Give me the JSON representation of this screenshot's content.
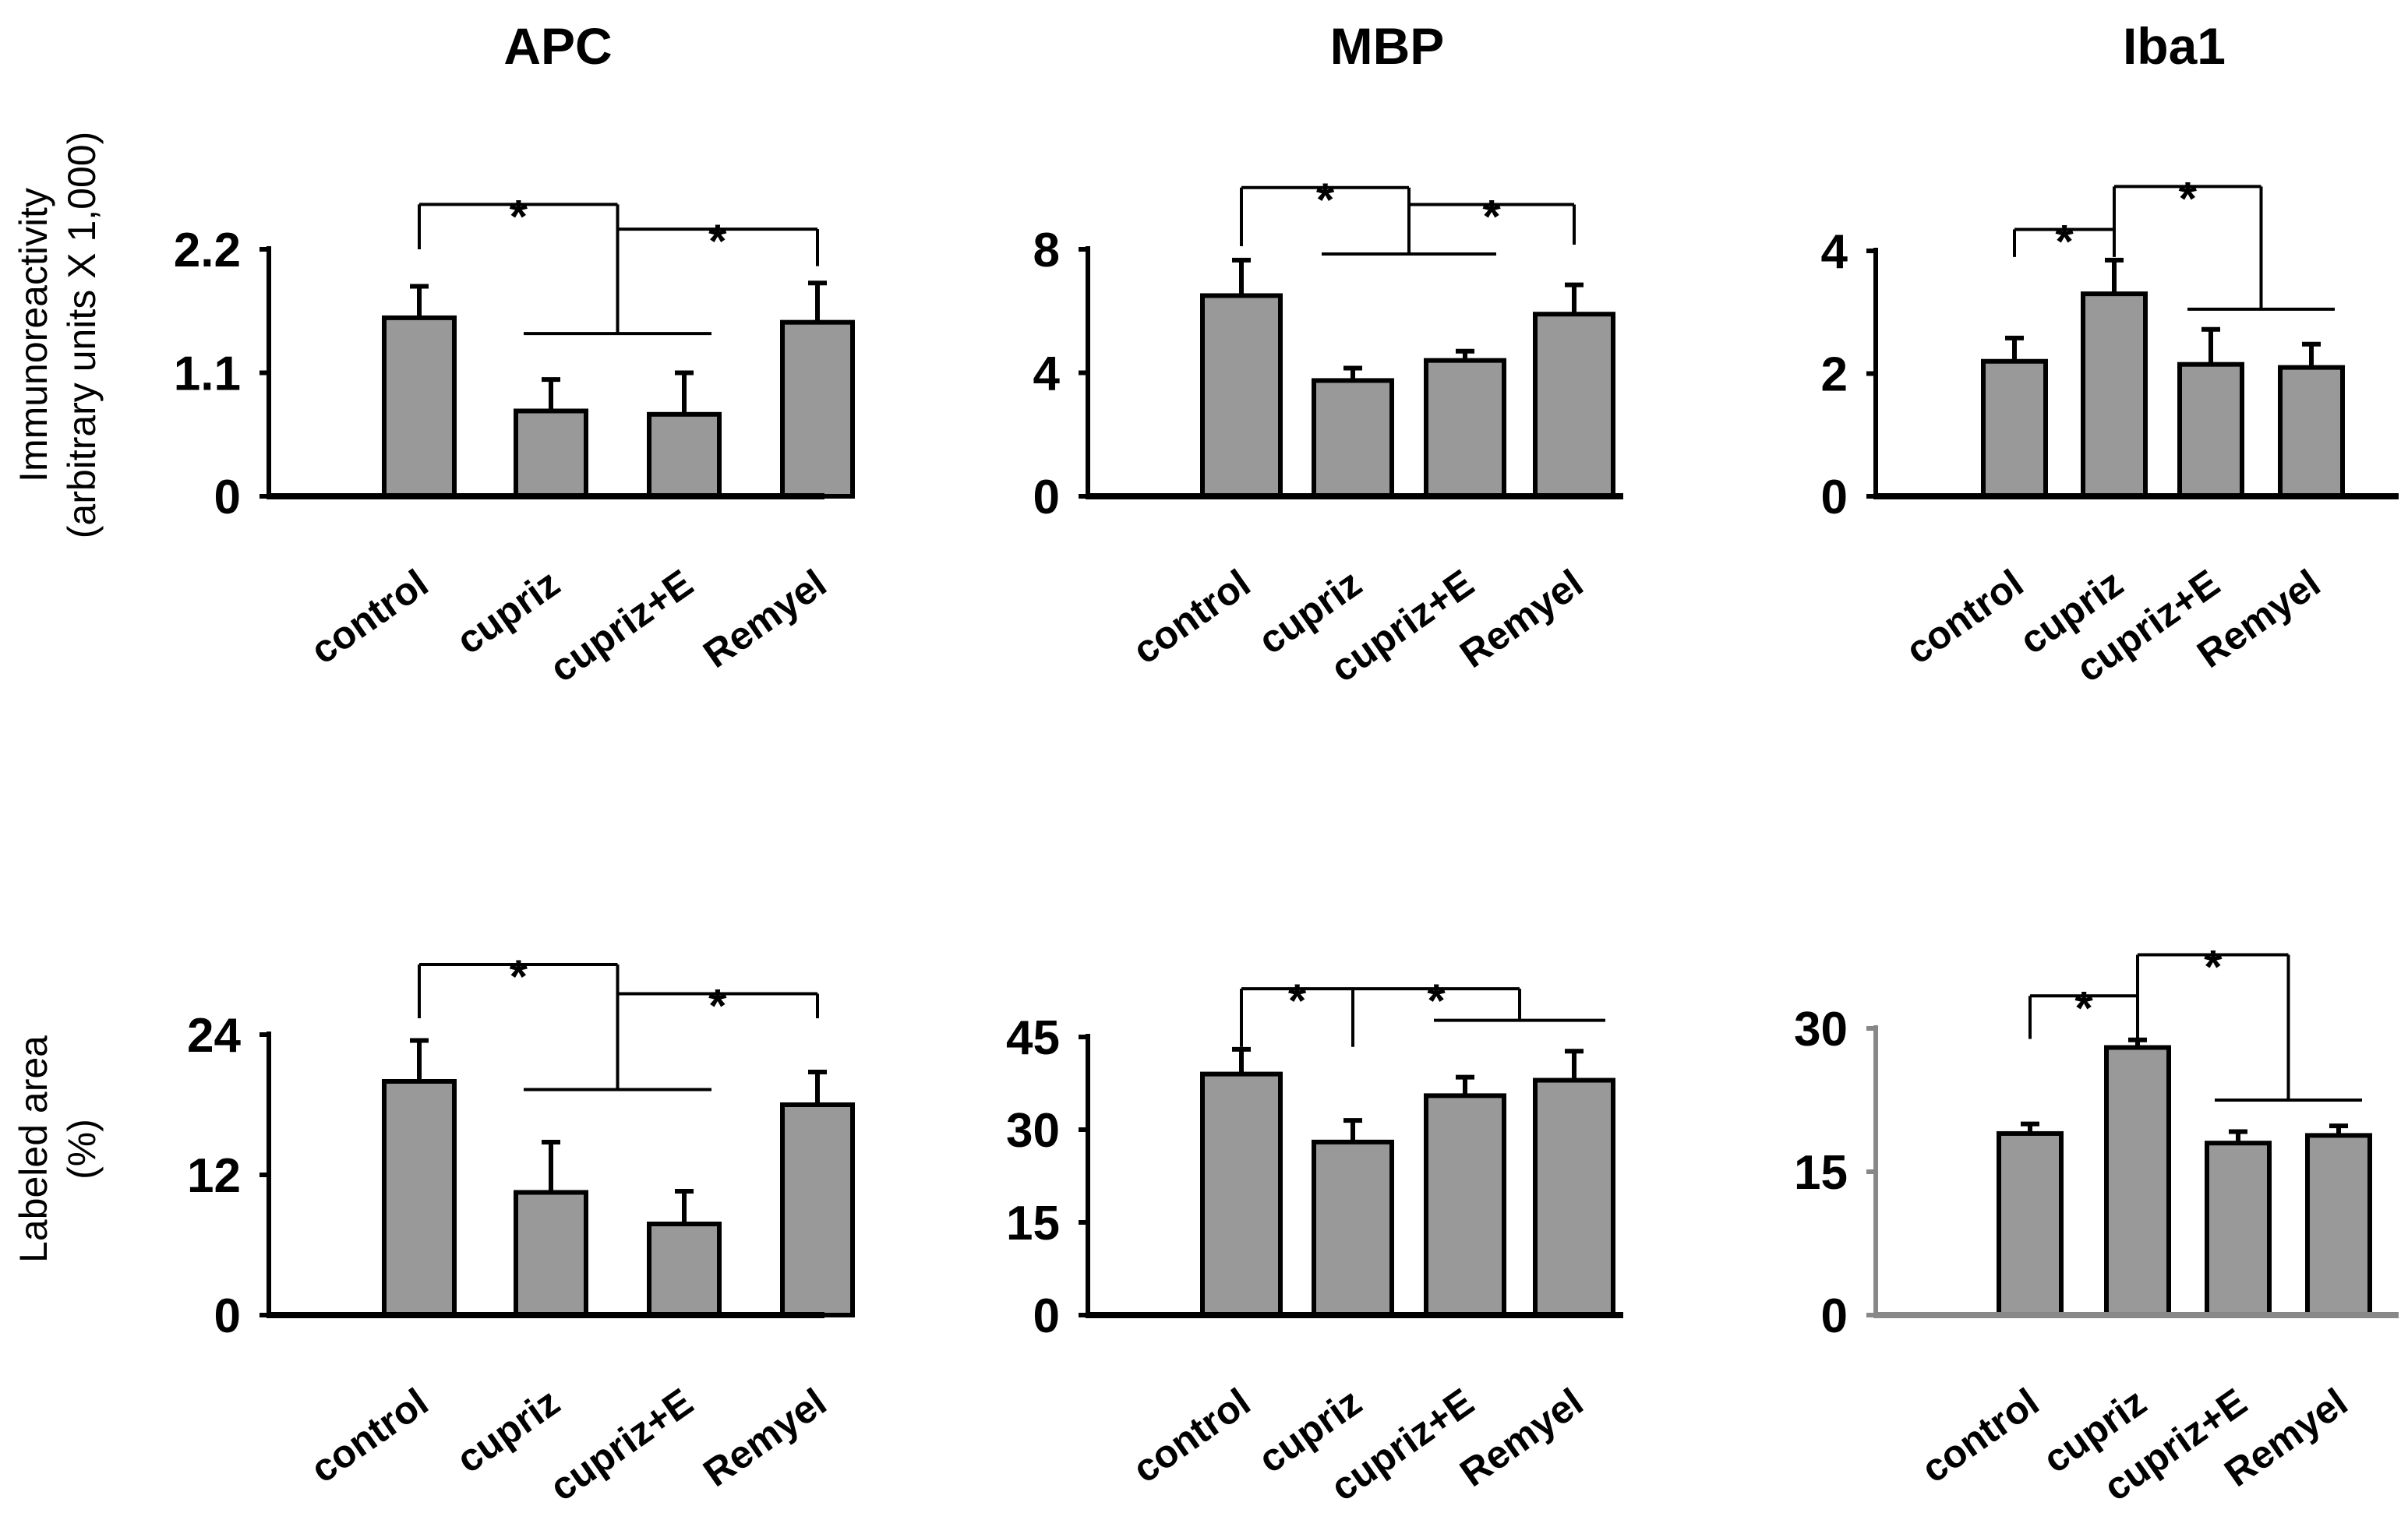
{
  "colors": {
    "bar": "#999999",
    "outline": "#000000",
    "background": "#ffffff",
    "iba1_labeled_axis": "#888888"
  },
  "row_ylabels": [
    [
      "Immunoreactivity",
      "(arbitrary units X 1,000)"
    ],
    [
      "Labeled area",
      "(%)"
    ]
  ],
  "chart_data": [
    {
      "type": "bar",
      "title": "APC",
      "row": 0,
      "col": 0,
      "categories": [
        "control",
        "cupriz",
        "cupriz+E",
        "Remyel"
      ],
      "values": [
        1.59,
        0.76,
        0.73,
        1.55
      ],
      "errors": [
        0.28,
        0.28,
        0.37,
        0.35
      ],
      "ylim": [
        0,
        2.2
      ],
      "yticks": [
        {
          "v": 0,
          "label": "0"
        },
        {
          "v": 1.1,
          "label": "1.1"
        },
        {
          "v": 2.2,
          "label": "2.2"
        }
      ],
      "grid": false,
      "significance": [
        {
          "label": "*",
          "from": 0,
          "to_range": [
            1,
            2
          ],
          "top": 2.6,
          "drop": 2.2,
          "group_line": 1.45
        },
        {
          "label": "*",
          "from": 3,
          "top": 2.38,
          "drop": 2.05
        }
      ]
    },
    {
      "type": "bar",
      "title": "MBP",
      "row": 0,
      "col": 1,
      "categories": [
        "control",
        "cupriz",
        "cupriz+E",
        "Remyel"
      ],
      "values": [
        6.5,
        3.75,
        4.4,
        5.9
      ],
      "errors": [
        1.15,
        0.4,
        0.3,
        0.95
      ],
      "ylim": [
        0,
        8
      ],
      "yticks": [
        {
          "v": 0,
          "label": "0"
        },
        {
          "v": 4,
          "label": "4"
        },
        {
          "v": 8,
          "label": "8"
        }
      ],
      "grid": false,
      "significance": [
        {
          "label": "*",
          "from": 0,
          "to_range": [
            1,
            2
          ],
          "top": 10.0,
          "drop": 8.1,
          "group_line": 7.85
        },
        {
          "label": "*",
          "from": 3,
          "top": 9.45,
          "drop": 8.15
        }
      ]
    },
    {
      "type": "bar",
      "title": "Iba1",
      "row": 0,
      "col": 2,
      "categories": [
        "control",
        "cupriz",
        "cupriz+E",
        "Remyel"
      ],
      "values": [
        2.2,
        3.3,
        2.15,
        2.1
      ],
      "errors": [
        0.38,
        0.55,
        0.57,
        0.38
      ],
      "ylim": [
        0,
        4
      ],
      "yticks": [
        {
          "v": 0,
          "label": "0"
        },
        {
          "v": 2,
          "label": "2"
        },
        {
          "v": 4,
          "label": "4"
        }
      ],
      "grid": false,
      "significance": [
        {
          "label": "*",
          "from": 0,
          "to": 1,
          "top": 4.35,
          "drop": 3.9
        },
        {
          "label": "*",
          "from": 1,
          "to_range": [
            2,
            3
          ],
          "top": 5.05,
          "drop": 4.05,
          "group_line": 3.05
        }
      ]
    },
    {
      "type": "bar",
      "title": "",
      "row": 1,
      "col": 0,
      "categories": [
        "control",
        "cupriz",
        "cupriz+E",
        "Remyel"
      ],
      "values": [
        20,
        10.5,
        7.8,
        18
      ],
      "errors": [
        3.5,
        4.3,
        2.8,
        2.8
      ],
      "ylim": [
        0,
        24
      ],
      "yticks": [
        {
          "v": 0,
          "label": "0"
        },
        {
          "v": 12,
          "label": "12"
        },
        {
          "v": 24,
          "label": "24"
        }
      ],
      "grid": false,
      "significance": [
        {
          "label": "*",
          "from": 0,
          "to_range": [
            1,
            2
          ],
          "top": 30.0,
          "drop": 25.4,
          "group_line": 19.3
        },
        {
          "label": "*",
          "from": 3,
          "top": 27.5,
          "drop": 25.4
        }
      ]
    },
    {
      "type": "bar",
      "title": "",
      "row": 1,
      "col": 1,
      "categories": [
        "control",
        "cupriz",
        "cupriz+E",
        "Remyel"
      ],
      "values": [
        39,
        28,
        35.5,
        38
      ],
      "errors": [
        4,
        3.5,
        3,
        4.7
      ],
      "ylim": [
        0,
        45
      ],
      "yticks": [
        {
          "v": 0,
          "label": "0"
        },
        {
          "v": 15,
          "label": "15"
        },
        {
          "v": 30,
          "label": "30"
        },
        {
          "v": 45,
          "label": "45"
        }
      ],
      "grid": false,
      "significance": [
        {
          "label": "*",
          "from": 0,
          "to": 1,
          "top": 52.8,
          "drop": 43.4
        },
        {
          "label": "*",
          "from": 1,
          "to_range": [
            2,
            3
          ],
          "top": 52.8,
          "drop": 47.7,
          "group_line": 47.7
        }
      ]
    },
    {
      "type": "bar",
      "title": "",
      "row": 1,
      "col": 2,
      "categories": [
        "control",
        "cupriz",
        "cupriz+E",
        "Remyel"
      ],
      "values": [
        19,
        28,
        18,
        18.8
      ],
      "errors": [
        1.0,
        0.8,
        1.2,
        1.0
      ],
      "ylim": [
        0,
        30
      ],
      "yticks": [
        {
          "v": 0,
          "label": "0"
        },
        {
          "v": 15,
          "label": "15"
        },
        {
          "v": 30,
          "label": "30"
        }
      ],
      "grid": false,
      "significance": [
        {
          "label": "*",
          "from": 0,
          "to": 1,
          "top": 33.4,
          "drop": 28.9
        },
        {
          "label": "*",
          "from": 1,
          "to_range": [
            2,
            3
          ],
          "top": 37.7,
          "drop": 28.9,
          "group_line": 22.5
        }
      ]
    }
  ]
}
